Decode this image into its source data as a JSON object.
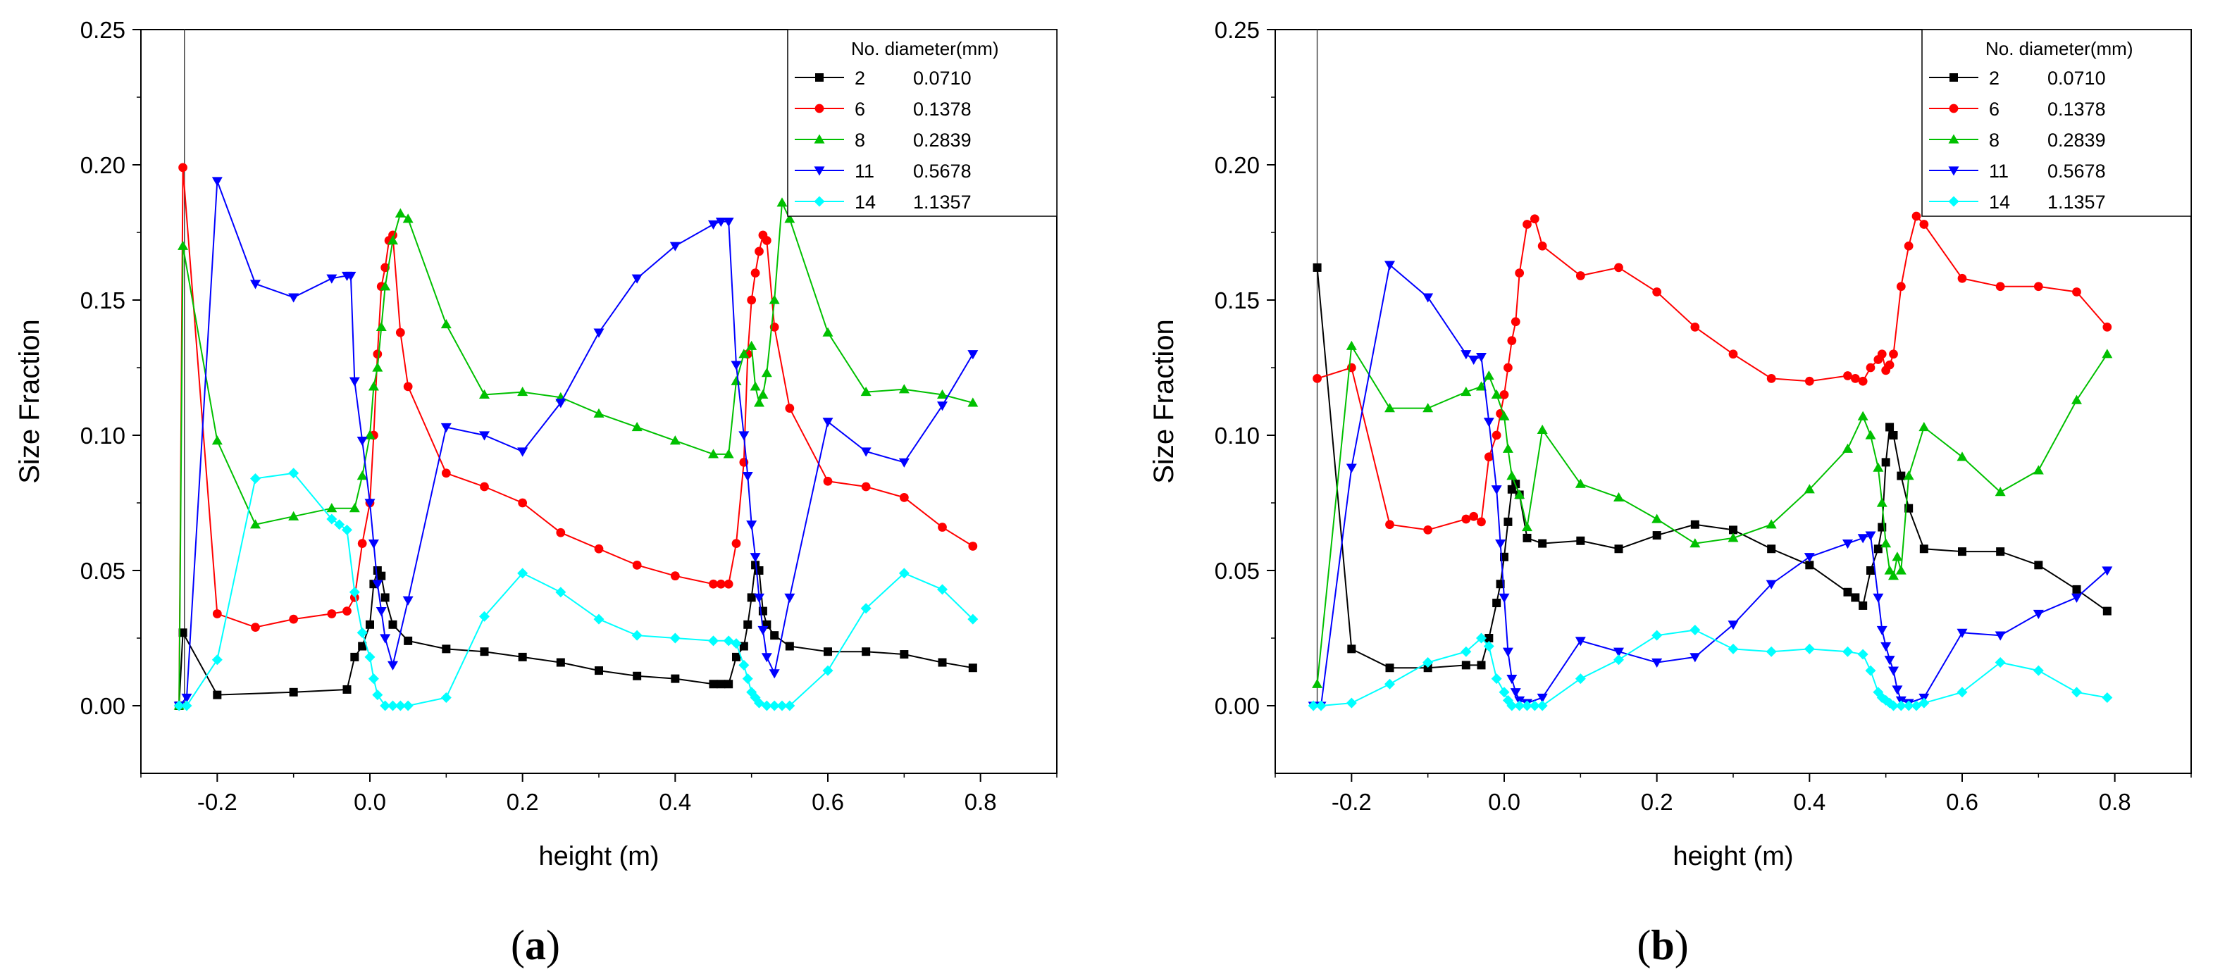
{
  "chart_data": [
    {
      "panel_label": "(a)",
      "panel_label_parts": {
        "open": "(",
        "letter": "a",
        "close": ")"
      },
      "type": "line",
      "title": "",
      "xlabel": "height (m)",
      "ylabel": "Size Fraction",
      "xlim": [
        -0.3,
        0.9
      ],
      "ylim": [
        -0.025,
        0.25
      ],
      "xticks": [
        -0.2,
        0.0,
        0.2,
        0.4,
        0.6,
        0.8
      ],
      "xtick_labels": [
        "-0.2",
        "0.0",
        "0.2",
        "0.4",
        "0.6",
        "0.8"
      ],
      "yticks": [
        0.0,
        0.05,
        0.1,
        0.15,
        0.2,
        0.25
      ],
      "ytick_labels": [
        "0.00",
        "0.05",
        "0.10",
        "0.15",
        "0.20",
        "0.25"
      ],
      "vertical_line_x": -0.243,
      "legend": {
        "placement": "top-right",
        "header": "No. diameter(mm)"
      },
      "series": [
        {
          "no": "2",
          "diameter": "0.0710",
          "color": "#000000",
          "marker": "square",
          "x": [
            -0.25,
            -0.245,
            -0.2,
            -0.1,
            -0.03,
            -0.02,
            -0.01,
            0.0,
            0.005,
            0.01,
            0.015,
            0.02,
            0.03,
            0.05,
            0.1,
            0.15,
            0.2,
            0.25,
            0.3,
            0.35,
            0.4,
            0.45,
            0.46,
            0.47,
            0.48,
            0.49,
            0.495,
            0.5,
            0.505,
            0.51,
            0.515,
            0.52,
            0.53,
            0.55,
            0.6,
            0.65,
            0.7,
            0.75,
            0.79
          ],
          "y": [
            0.0,
            0.027,
            0.004,
            0.005,
            0.006,
            0.018,
            0.022,
            0.03,
            0.045,
            0.05,
            0.048,
            0.04,
            0.03,
            0.024,
            0.021,
            0.02,
            0.018,
            0.016,
            0.013,
            0.011,
            0.01,
            0.008,
            0.008,
            0.008,
            0.018,
            0.022,
            0.03,
            0.04,
            0.052,
            0.05,
            0.035,
            0.03,
            0.026,
            0.022,
            0.02,
            0.02,
            0.019,
            0.016,
            0.014
          ]
        },
        {
          "no": "6",
          "diameter": "0.1378",
          "color": "#ff0000",
          "marker": "circle",
          "x": [
            -0.25,
            -0.245,
            -0.2,
            -0.15,
            -0.1,
            -0.05,
            -0.03,
            -0.02,
            -0.01,
            0.0,
            0.005,
            0.01,
            0.015,
            0.02,
            0.025,
            0.03,
            0.04,
            0.05,
            0.1,
            0.15,
            0.2,
            0.25,
            0.3,
            0.35,
            0.4,
            0.45,
            0.46,
            0.47,
            0.48,
            0.49,
            0.495,
            0.5,
            0.505,
            0.51,
            0.515,
            0.52,
            0.53,
            0.55,
            0.6,
            0.65,
            0.7,
            0.75,
            0.79
          ],
          "y": [
            0.0,
            0.199,
            0.034,
            0.029,
            0.032,
            0.034,
            0.035,
            0.04,
            0.06,
            0.075,
            0.1,
            0.13,
            0.155,
            0.162,
            0.172,
            0.174,
            0.138,
            0.118,
            0.086,
            0.081,
            0.075,
            0.064,
            0.058,
            0.052,
            0.048,
            0.045,
            0.045,
            0.045,
            0.06,
            0.09,
            0.13,
            0.15,
            0.16,
            0.168,
            0.174,
            0.172,
            0.14,
            0.11,
            0.083,
            0.081,
            0.077,
            0.066,
            0.059
          ]
        },
        {
          "no": "8",
          "diameter": "0.2839",
          "color": "#00c000",
          "marker": "triangle-up",
          "x": [
            -0.25,
            -0.245,
            -0.2,
            -0.15,
            -0.1,
            -0.05,
            -0.02,
            -0.01,
            0.0,
            0.005,
            0.01,
            0.015,
            0.02,
            0.03,
            0.04,
            0.05,
            0.1,
            0.15,
            0.2,
            0.25,
            0.3,
            0.35,
            0.4,
            0.45,
            0.47,
            0.48,
            0.49,
            0.5,
            0.505,
            0.51,
            0.515,
            0.52,
            0.53,
            0.54,
            0.55,
            0.6,
            0.65,
            0.7,
            0.75,
            0.79
          ],
          "y": [
            0.0,
            0.17,
            0.098,
            0.067,
            0.07,
            0.073,
            0.073,
            0.085,
            0.1,
            0.118,
            0.125,
            0.14,
            0.155,
            0.172,
            0.182,
            0.18,
            0.141,
            0.115,
            0.116,
            0.114,
            0.108,
            0.103,
            0.098,
            0.093,
            0.093,
            0.12,
            0.13,
            0.133,
            0.118,
            0.112,
            0.115,
            0.123,
            0.15,
            0.186,
            0.18,
            0.138,
            0.116,
            0.117,
            0.115,
            0.112
          ]
        },
        {
          "no": "11",
          "diameter": "0.5678",
          "color": "#0000ff",
          "marker": "triangle-down",
          "x": [
            -0.25,
            -0.24,
            -0.2,
            -0.15,
            -0.1,
            -0.05,
            -0.03,
            -0.025,
            -0.02,
            -0.01,
            0.0,
            0.005,
            0.01,
            0.015,
            0.02,
            0.03,
            0.05,
            0.1,
            0.15,
            0.2,
            0.25,
            0.3,
            0.35,
            0.4,
            0.45,
            0.46,
            0.47,
            0.48,
            0.49,
            0.495,
            0.5,
            0.505,
            0.51,
            0.515,
            0.52,
            0.53,
            0.55,
            0.6,
            0.65,
            0.7,
            0.75,
            0.79
          ],
          "y": [
            0.0,
            0.003,
            0.194,
            0.156,
            0.151,
            0.158,
            0.159,
            0.159,
            0.12,
            0.098,
            0.075,
            0.06,
            0.045,
            0.035,
            0.025,
            0.015,
            0.039,
            0.103,
            0.1,
            0.094,
            0.112,
            0.138,
            0.158,
            0.17,
            0.178,
            0.179,
            0.179,
            0.126,
            0.1,
            0.085,
            0.067,
            0.055,
            0.04,
            0.028,
            0.018,
            0.012,
            0.04,
            0.105,
            0.094,
            0.09,
            0.111,
            0.13
          ]
        },
        {
          "no": "14",
          "diameter": "1.1357",
          "color": "#00ffff",
          "marker": "diamond",
          "x": [
            -0.25,
            -0.24,
            -0.2,
            -0.15,
            -0.1,
            -0.05,
            -0.04,
            -0.03,
            -0.02,
            -0.01,
            0.0,
            0.005,
            0.01,
            0.02,
            0.03,
            0.04,
            0.05,
            0.1,
            0.15,
            0.2,
            0.25,
            0.3,
            0.35,
            0.4,
            0.45,
            0.47,
            0.48,
            0.49,
            0.495,
            0.5,
            0.505,
            0.51,
            0.52,
            0.53,
            0.54,
            0.55,
            0.6,
            0.65,
            0.7,
            0.75,
            0.79
          ],
          "y": [
            0.0,
            0.0,
            0.017,
            0.084,
            0.086,
            0.069,
            0.067,
            0.065,
            0.042,
            0.027,
            0.018,
            0.01,
            0.004,
            0.0,
            0.0,
            0.0,
            0.0,
            0.003,
            0.033,
            0.049,
            0.042,
            0.032,
            0.026,
            0.025,
            0.024,
            0.024,
            0.023,
            0.015,
            0.01,
            0.005,
            0.003,
            0.001,
            0.0,
            0.0,
            0.0,
            0.0,
            0.013,
            0.036,
            0.049,
            0.043,
            0.032
          ]
        }
      ]
    },
    {
      "panel_label": "(b)",
      "panel_label_parts": {
        "open": "(",
        "letter": "b",
        "close": ")"
      },
      "type": "line",
      "title": "",
      "xlabel": "height (m)",
      "ylabel": "Size Fraction",
      "xlim": [
        -0.3,
        0.9
      ],
      "ylim": [
        -0.025,
        0.25
      ],
      "xticks": [
        -0.2,
        0.0,
        0.2,
        0.4,
        0.6,
        0.8
      ],
      "xtick_labels": [
        "-0.2",
        "0.0",
        "0.2",
        "0.4",
        "0.6",
        "0.8"
      ],
      "yticks": [
        0.0,
        0.05,
        0.1,
        0.15,
        0.2,
        0.25
      ],
      "ytick_labels": [
        "0.00",
        "0.05",
        "0.10",
        "0.15",
        "0.20",
        "0.25"
      ],
      "vertical_line_x": -0.245,
      "legend": {
        "placement": "top-right",
        "header": "No. diameter(mm)"
      },
      "series": [
        {
          "no": "2",
          "diameter": "0.0710",
          "color": "#000000",
          "marker": "square",
          "x": [
            -0.245,
            -0.2,
            -0.15,
            -0.1,
            -0.05,
            -0.03,
            -0.02,
            -0.01,
            -0.005,
            0.0,
            0.005,
            0.01,
            0.015,
            0.02,
            0.03,
            0.05,
            0.1,
            0.15,
            0.2,
            0.25,
            0.3,
            0.35,
            0.4,
            0.45,
            0.46,
            0.47,
            0.48,
            0.49,
            0.495,
            0.5,
            0.505,
            0.51,
            0.52,
            0.53,
            0.55,
            0.6,
            0.65,
            0.7,
            0.75,
            0.79
          ],
          "y": [
            0.162,
            0.021,
            0.014,
            0.014,
            0.015,
            0.015,
            0.025,
            0.038,
            0.045,
            0.055,
            0.068,
            0.08,
            0.082,
            0.078,
            0.062,
            0.06,
            0.061,
            0.058,
            0.063,
            0.067,
            0.065,
            0.058,
            0.052,
            0.042,
            0.04,
            0.037,
            0.05,
            0.058,
            0.066,
            0.09,
            0.103,
            0.1,
            0.085,
            0.073,
            0.058,
            0.057,
            0.057,
            0.052,
            0.043,
            0.035
          ]
        },
        {
          "no": "6",
          "diameter": "0.1378",
          "color": "#ff0000",
          "marker": "circle",
          "x": [
            -0.245,
            -0.2,
            -0.15,
            -0.1,
            -0.05,
            -0.04,
            -0.03,
            -0.02,
            -0.01,
            -0.005,
            0.0,
            0.005,
            0.01,
            0.015,
            0.02,
            0.03,
            0.04,
            0.05,
            0.1,
            0.15,
            0.2,
            0.25,
            0.3,
            0.35,
            0.4,
            0.45,
            0.46,
            0.47,
            0.48,
            0.49,
            0.495,
            0.5,
            0.505,
            0.51,
            0.52,
            0.53,
            0.54,
            0.55,
            0.6,
            0.65,
            0.7,
            0.75,
            0.79
          ],
          "y": [
            0.121,
            0.125,
            0.067,
            0.065,
            0.069,
            0.07,
            0.068,
            0.092,
            0.1,
            0.108,
            0.115,
            0.125,
            0.135,
            0.142,
            0.16,
            0.178,
            0.18,
            0.17,
            0.159,
            0.162,
            0.153,
            0.14,
            0.13,
            0.121,
            0.12,
            0.122,
            0.121,
            0.12,
            0.125,
            0.128,
            0.13,
            0.124,
            0.126,
            0.13,
            0.155,
            0.17,
            0.181,
            0.178,
            0.158,
            0.155,
            0.155,
            0.153,
            0.14
          ]
        },
        {
          "no": "8",
          "diameter": "0.2839",
          "color": "#00c000",
          "marker": "triangle-up",
          "x": [
            -0.245,
            -0.2,
            -0.15,
            -0.1,
            -0.05,
            -0.03,
            -0.02,
            -0.01,
            0.0,
            0.005,
            0.01,
            0.02,
            0.03,
            0.05,
            0.1,
            0.15,
            0.2,
            0.25,
            0.3,
            0.35,
            0.4,
            0.45,
            0.47,
            0.48,
            0.49,
            0.495,
            0.5,
            0.505,
            0.51,
            0.515,
            0.52,
            0.53,
            0.55,
            0.6,
            0.65,
            0.7,
            0.75,
            0.79
          ],
          "y": [
            0.008,
            0.133,
            0.11,
            0.11,
            0.116,
            0.118,
            0.122,
            0.115,
            0.107,
            0.095,
            0.085,
            0.078,
            0.066,
            0.102,
            0.082,
            0.077,
            0.069,
            0.06,
            0.062,
            0.067,
            0.08,
            0.095,
            0.107,
            0.1,
            0.088,
            0.075,
            0.06,
            0.05,
            0.048,
            0.055,
            0.05,
            0.085,
            0.103,
            0.092,
            0.079,
            0.087,
            0.113,
            0.13
          ]
        },
        {
          "no": "11",
          "diameter": "0.5678",
          "color": "#0000ff",
          "marker": "triangle-down",
          "x": [
            -0.25,
            -0.24,
            -0.2,
            -0.15,
            -0.1,
            -0.05,
            -0.04,
            -0.03,
            -0.02,
            -0.01,
            -0.005,
            0.0,
            0.005,
            0.01,
            0.015,
            0.02,
            0.03,
            0.05,
            0.1,
            0.15,
            0.2,
            0.25,
            0.3,
            0.35,
            0.4,
            0.45,
            0.47,
            0.48,
            0.49,
            0.495,
            0.5,
            0.505,
            0.51,
            0.515,
            0.52,
            0.53,
            0.55,
            0.6,
            0.65,
            0.7,
            0.75,
            0.79
          ],
          "y": [
            0.0,
            0.0,
            0.088,
            0.163,
            0.151,
            0.13,
            0.128,
            0.129,
            0.105,
            0.08,
            0.06,
            0.04,
            0.02,
            0.01,
            0.005,
            0.002,
            0.001,
            0.003,
            0.024,
            0.02,
            0.016,
            0.018,
            0.03,
            0.045,
            0.055,
            0.06,
            0.062,
            0.063,
            0.04,
            0.028,
            0.022,
            0.017,
            0.013,
            0.006,
            0.002,
            0.001,
            0.003,
            0.027,
            0.026,
            0.034,
            0.04,
            0.05
          ]
        },
        {
          "no": "14",
          "diameter": "1.1357",
          "color": "#00ffff",
          "marker": "diamond",
          "x": [
            -0.25,
            -0.24,
            -0.2,
            -0.15,
            -0.1,
            -0.05,
            -0.03,
            -0.02,
            -0.01,
            0.0,
            0.005,
            0.01,
            0.02,
            0.03,
            0.04,
            0.05,
            0.1,
            0.15,
            0.2,
            0.25,
            0.3,
            0.35,
            0.4,
            0.45,
            0.47,
            0.48,
            0.49,
            0.495,
            0.5,
            0.505,
            0.51,
            0.52,
            0.53,
            0.54,
            0.55,
            0.6,
            0.65,
            0.7,
            0.75,
            0.79
          ],
          "y": [
            0.0,
            0.0,
            0.001,
            0.008,
            0.016,
            0.02,
            0.025,
            0.022,
            0.01,
            0.005,
            0.002,
            0.0,
            0.0,
            0.0,
            0.0,
            0.0,
            0.01,
            0.017,
            0.026,
            0.028,
            0.021,
            0.02,
            0.021,
            0.02,
            0.019,
            0.013,
            0.005,
            0.003,
            0.002,
            0.001,
            0.0,
            0.0,
            0.0,
            0.0,
            0.001,
            0.005,
            0.016,
            0.013,
            0.005,
            0.003
          ]
        }
      ]
    }
  ]
}
